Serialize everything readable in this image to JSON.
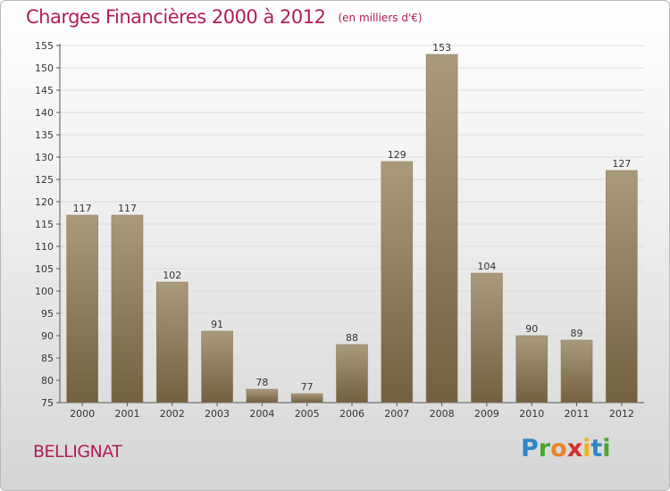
{
  "title": "Charges Financières 2000 à 2012",
  "subtitle": "(en milliers d'€)",
  "town": "BELLIGNAT",
  "logo": {
    "letters": [
      "P",
      "r",
      "o",
      "x",
      "i",
      "t",
      "i"
    ],
    "colors": [
      "#2f86c8",
      "#4aa52e",
      "#e9862a",
      "#d32f2f",
      "#f0b418",
      "#2f86c8",
      "#4aa52e"
    ]
  },
  "colors": {
    "bar_top": "#aa9a7c",
    "bar_bottom": "#72603f",
    "title": "#b11d5a"
  },
  "chart_data": {
    "type": "bar",
    "categories": [
      "2000",
      "2001",
      "2002",
      "2003",
      "2004",
      "2005",
      "2006",
      "2007",
      "2008",
      "2009",
      "2010",
      "2011",
      "2012"
    ],
    "values": [
      117,
      117,
      102,
      91,
      78,
      77,
      88,
      129,
      153,
      104,
      90,
      89,
      127
    ],
    "yticks": [
      75,
      80,
      85,
      90,
      95,
      100,
      105,
      110,
      115,
      120,
      125,
      130,
      135,
      140,
      145,
      150,
      155
    ],
    "ylim": [
      75,
      155
    ],
    "grid": true,
    "title": "Charges Financières 2000 à 2012",
    "subtitle": "(en milliers d'€)"
  }
}
